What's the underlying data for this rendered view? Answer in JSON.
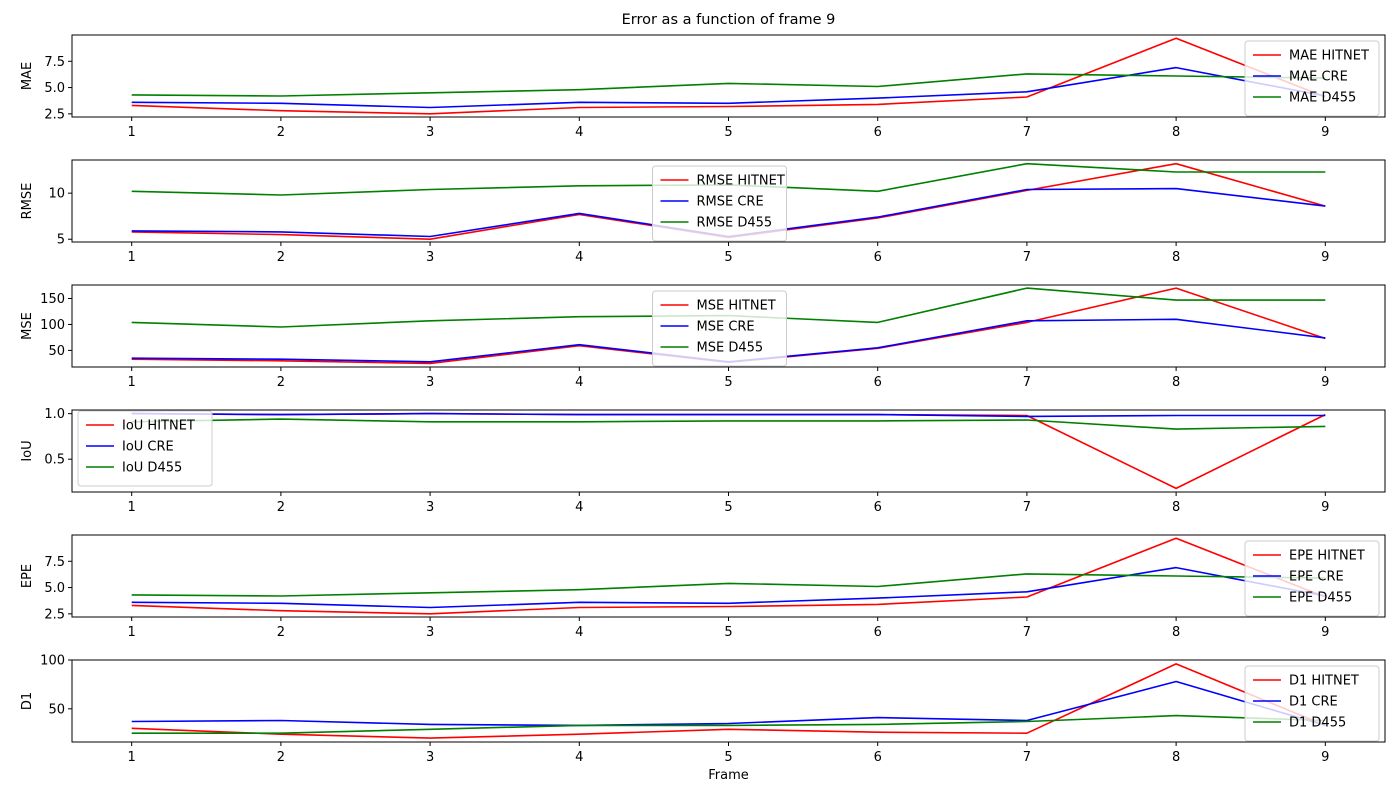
{
  "figure": {
    "title": "Error as a function of frame 9",
    "xlabel": "Frame"
  },
  "colors": {
    "HITNET": "#ff0000",
    "CRE": "#0000ff",
    "D455": "#008000"
  },
  "chart_data": [
    {
      "type": "line",
      "ylabel": "MAE",
      "x": [
        1,
        2,
        3,
        4,
        5,
        6,
        7,
        8,
        9
      ],
      "yticks": [
        2.5,
        5.0,
        7.5
      ],
      "ytick_labels": [
        "2.5",
        "5.0",
        "7.5"
      ],
      "ylim": [
        2.2,
        10.0
      ],
      "legend": "upper right",
      "series": [
        {
          "name": "MAE HITNET",
          "key": "HITNET",
          "values": [
            3.3,
            2.8,
            2.5,
            3.1,
            3.2,
            3.4,
            4.1,
            9.7,
            4.1
          ]
        },
        {
          "name": "MAE CRE",
          "key": "CRE",
          "values": [
            3.6,
            3.5,
            3.1,
            3.6,
            3.5,
            4.0,
            4.6,
            6.9,
            4.2
          ]
        },
        {
          "name": "MAE D455",
          "key": "D455",
          "values": [
            4.3,
            4.2,
            4.5,
            4.8,
            5.4,
            5.1,
            6.3,
            6.1,
            5.9
          ]
        }
      ]
    },
    {
      "type": "line",
      "ylabel": "RMSE",
      "x": [
        1,
        2,
        3,
        4,
        5,
        6,
        7,
        8,
        9
      ],
      "yticks": [
        5,
        10
      ],
      "ytick_labels": [
        "5",
        "10"
      ],
      "ylim": [
        4.7,
        13.6
      ],
      "legend": "upper center",
      "series": [
        {
          "name": "RMSE HITNET",
          "key": "HITNET",
          "values": [
            5.8,
            5.5,
            5.0,
            7.7,
            5.2,
            7.3,
            10.3,
            13.2,
            8.6
          ]
        },
        {
          "name": "RMSE CRE",
          "key": "CRE",
          "values": [
            5.9,
            5.8,
            5.3,
            7.8,
            5.3,
            7.4,
            10.4,
            10.5,
            8.6
          ]
        },
        {
          "name": "RMSE D455",
          "key": "D455",
          "values": [
            10.2,
            9.8,
            10.4,
            10.8,
            10.9,
            10.2,
            13.2,
            12.3,
            12.3
          ]
        }
      ]
    },
    {
      "type": "line",
      "ylabel": "MSE",
      "x": [
        1,
        2,
        3,
        4,
        5,
        6,
        7,
        8,
        9
      ],
      "yticks": [
        50,
        100,
        150
      ],
      "ytick_labels": [
        "50",
        "100",
        "150"
      ],
      "ylim": [
        18,
        176
      ],
      "legend": "upper center",
      "series": [
        {
          "name": "MSE HITNET",
          "key": "HITNET",
          "values": [
            33,
            30,
            25,
            59,
            27,
            54,
            104,
            170,
            73
          ]
        },
        {
          "name": "MSE CRE",
          "key": "CRE",
          "values": [
            35,
            33,
            28,
            61,
            28,
            55,
            107,
            110,
            74
          ]
        },
        {
          "name": "MSE D455",
          "key": "D455",
          "values": [
            104,
            95,
            107,
            115,
            117,
            104,
            170,
            147,
            147
          ]
        }
      ]
    },
    {
      "type": "line",
      "ylabel": "IoU",
      "x": [
        1,
        2,
        3,
        4,
        5,
        6,
        7,
        8,
        9
      ],
      "yticks": [
        0.5,
        1.0
      ],
      "ytick_labels": [
        "0.5",
        "1.0"
      ],
      "ylim": [
        0.14,
        1.04
      ],
      "legend": "lower left",
      "series": [
        {
          "name": "IoU HITNET",
          "key": "HITNET",
          "values": [
            1.0,
            0.99,
            1.0,
            0.99,
            0.99,
            0.99,
            0.98,
            0.18,
            0.99
          ]
        },
        {
          "name": "IoU CRE",
          "key": "CRE",
          "values": [
            1.0,
            0.99,
            1.0,
            0.99,
            0.99,
            0.99,
            0.97,
            0.98,
            0.98
          ]
        },
        {
          "name": "IoU D455",
          "key": "D455",
          "values": [
            0.91,
            0.94,
            0.91,
            0.91,
            0.92,
            0.92,
            0.93,
            0.83,
            0.86
          ]
        }
      ]
    },
    {
      "type": "line",
      "ylabel": "EPE",
      "x": [
        1,
        2,
        3,
        4,
        5,
        6,
        7,
        8,
        9
      ],
      "yticks": [
        2.5,
        5.0,
        7.5
      ],
      "ytick_labels": [
        "2.5",
        "5.0",
        "7.5"
      ],
      "ylim": [
        2.2,
        10.0
      ],
      "legend": "upper right",
      "series": [
        {
          "name": "EPE HITNET",
          "key": "HITNET",
          "values": [
            3.3,
            2.8,
            2.5,
            3.1,
            3.2,
            3.4,
            4.1,
            9.7,
            4.1
          ]
        },
        {
          "name": "EPE CRE",
          "key": "CRE",
          "values": [
            3.6,
            3.5,
            3.1,
            3.6,
            3.5,
            4.0,
            4.6,
            6.9,
            4.2
          ]
        },
        {
          "name": "EPE D455",
          "key": "D455",
          "values": [
            4.3,
            4.2,
            4.5,
            4.8,
            5.4,
            5.1,
            6.3,
            6.1,
            5.9
          ]
        }
      ]
    },
    {
      "type": "line",
      "ylabel": "D1",
      "x": [
        1,
        2,
        3,
        4,
        5,
        6,
        7,
        8,
        9
      ],
      "yticks": [
        50,
        100
      ],
      "ytick_labels": [
        "50",
        "100"
      ],
      "ylim": [
        16,
        100
      ],
      "legend": "upper right",
      "series": [
        {
          "name": "D1 HITNET",
          "key": "HITNET",
          "values": [
            30,
            24,
            20,
            24,
            29,
            26,
            25,
            96,
            33
          ]
        },
        {
          "name": "D1 CRE",
          "key": "CRE",
          "values": [
            37,
            38,
            34,
            33,
            35,
            41,
            38,
            78,
            33
          ]
        },
        {
          "name": "D1 D455",
          "key": "D455",
          "values": [
            25,
            25,
            29,
            33,
            33,
            34,
            37,
            43,
            38
          ]
        }
      ]
    }
  ]
}
